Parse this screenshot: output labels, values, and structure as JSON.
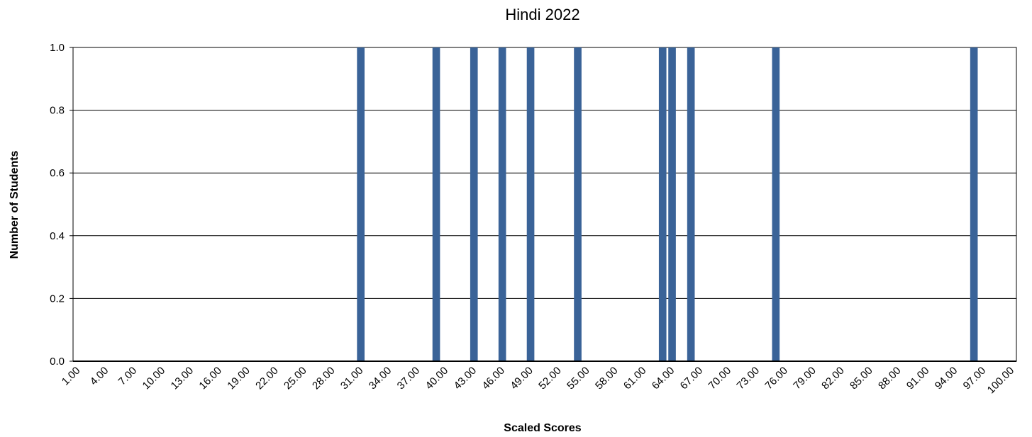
{
  "chart_data": {
    "type": "bar",
    "title": "Hindi 2022",
    "x_label": "Scaled Scores",
    "y_label": "Number of Students",
    "categories": [
      "1.00",
      null,
      null,
      "4.00",
      null,
      null,
      "7.00",
      null,
      null,
      "10.00",
      null,
      null,
      "13.00",
      null,
      null,
      "16.00",
      null,
      null,
      "19.00",
      null,
      null,
      "22.00",
      null,
      null,
      "25.00",
      null,
      null,
      "28.00",
      null,
      null,
      "31.00",
      null,
      null,
      "34.00",
      null,
      null,
      "37.00",
      null,
      null,
      "40.00",
      null,
      null,
      "43.00",
      null,
      null,
      "46.00",
      null,
      null,
      "49.00",
      null,
      null,
      "52.00",
      null,
      null,
      "55.00",
      null,
      null,
      "58.00",
      null,
      null,
      "61.00",
      null,
      null,
      "64.00",
      null,
      null,
      "67.00",
      null,
      null,
      "70.00",
      null,
      null,
      "73.00",
      null,
      null,
      "76.00",
      null,
      null,
      "79.00",
      null,
      null,
      "82.00",
      null,
      null,
      "85.00",
      null,
      null,
      "88.00",
      null,
      null,
      "91.00",
      null,
      null,
      "94.00",
      null,
      null,
      "97.00",
      null,
      null,
      "100.00"
    ],
    "values": [
      0,
      0,
      0,
      0,
      0,
      0,
      0,
      0,
      0,
      0,
      0,
      0,
      0,
      0,
      0,
      0,
      0,
      0,
      0,
      0,
      0,
      0,
      0,
      0,
      0,
      0,
      0,
      0,
      0,
      0,
      1,
      0,
      0,
      0,
      0,
      0,
      0,
      0,
      1,
      0,
      0,
      0,
      1,
      0,
      0,
      1,
      0,
      0,
      1,
      0,
      0,
      0,
      0,
      1,
      0,
      0,
      0,
      0,
      0,
      0,
      0,
      0,
      1,
      1,
      0,
      1,
      0,
      0,
      0,
      0,
      0,
      0,
      0,
      0,
      1,
      0,
      0,
      0,
      0,
      0,
      0,
      0,
      0,
      0,
      0,
      0,
      0,
      0,
      0,
      0,
      0,
      0,
      0,
      0,
      0,
      1,
      0,
      0,
      0,
      0
    ],
    "color": "#3a6398",
    "ylim": [
      0,
      1
    ],
    "yticks": [
      {
        "value": 0,
        "label": "0.0"
      },
      0.2,
      0.4,
      0.6,
      0.8,
      {
        "value": 1,
        "label": "1.0"
      }
    ],
    "grid": true
  }
}
